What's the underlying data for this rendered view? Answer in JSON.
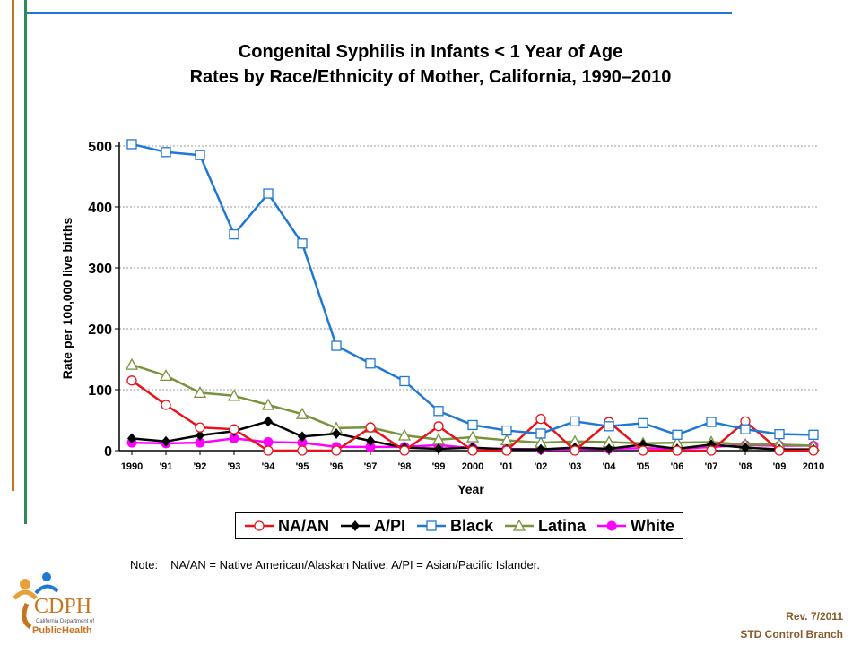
{
  "header": {
    "title_line1": "Congenital Syphilis in Infants < 1 Year of Age",
    "title_line2": "Rates by Race/Ethnicity of Mother, California, 1990–2010"
  },
  "note": {
    "label": "Note:",
    "text": "NA/AN = Native American/Alaskan Native, A/PI = Asian/Pacific Islander."
  },
  "footer": {
    "revision": "Rev. 7/2011",
    "branch": "STD Control Branch"
  },
  "logo": {
    "text": "CDPH",
    "subtext": "California Department of",
    "brand": "PublicHealth"
  },
  "colors": {
    "accent_orange": "#c8731e",
    "accent_green": "#2e8b57",
    "accent_blue": "#1f78d1"
  },
  "chart_data": {
    "type": "line",
    "title": "Congenital Syphilis in Infants < 1 Year of Age Rates by Race/Ethnicity of Mother, California, 1990–2010",
    "xlabel": "Year",
    "ylabel": "Rate per 100,000 live births",
    "ylim": [
      0,
      500
    ],
    "yticks": [
      0,
      100,
      200,
      300,
      400,
      500
    ],
    "grid": "horizontal dotted",
    "legend_position": "bottom",
    "categories": [
      "1990",
      "'91",
      "'92",
      "'93",
      "'94",
      "'95",
      "'96",
      "'97",
      "'98",
      "'99",
      "2000",
      "'01",
      "'02",
      "'03",
      "'04",
      "'05",
      "'06",
      "'07",
      "'08",
      "'09",
      "2010"
    ],
    "series": [
      {
        "name": "NA/AN",
        "color": "#e8141b",
        "marker": "circle-open",
        "values": [
          115,
          75,
          38,
          35,
          0,
          0,
          0,
          38,
          0,
          40,
          0,
          0,
          52,
          0,
          47,
          0,
          0,
          0,
          48,
          0,
          0
        ]
      },
      {
        "name": "A/PI",
        "color": "#000000",
        "marker": "diamond-filled",
        "values": [
          20,
          15,
          25,
          32,
          48,
          23,
          28,
          16,
          5,
          3,
          5,
          2,
          2,
          5,
          3,
          10,
          3,
          10,
          5,
          2,
          2
        ]
      },
      {
        "name": "Black",
        "color": "#1f78d1",
        "marker": "square-open",
        "values": [
          503,
          490,
          485,
          355,
          422,
          340,
          172,
          143,
          114,
          65,
          42,
          33,
          28,
          48,
          40,
          45,
          26,
          47,
          35,
          27,
          26
        ]
      },
      {
        "name": "Latina",
        "color": "#77933c",
        "marker": "triangle-open",
        "values": [
          141,
          123,
          95,
          90,
          75,
          60,
          37,
          38,
          25,
          18,
          22,
          17,
          13,
          15,
          14,
          12,
          13,
          14,
          10,
          10,
          8
        ]
      },
      {
        "name": "White",
        "color": "#ff00ff",
        "marker": "circle-filled",
        "values": [
          13,
          12,
          13,
          20,
          14,
          13,
          6,
          6,
          6,
          9,
          4,
          3,
          2,
          2,
          3,
          4,
          3,
          6,
          9,
          8,
          8
        ]
      }
    ]
  }
}
